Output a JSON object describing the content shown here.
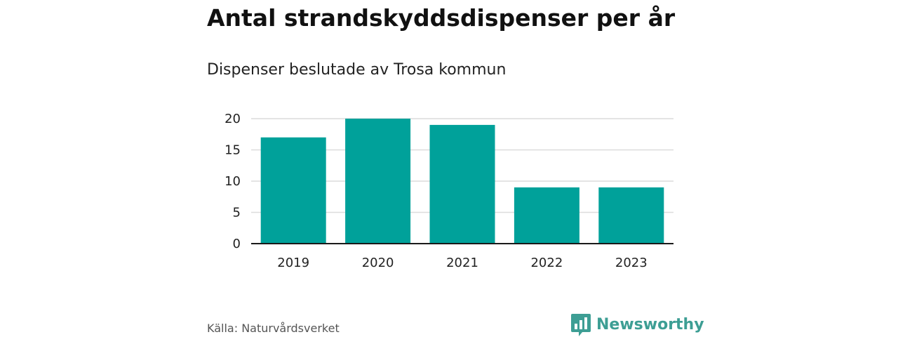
{
  "title": "Antal strandskyddsdispenser per år",
  "subtitle": "Dispenser beslutade av Trosa kommun",
  "source": "Källa: Naturvårdsverket",
  "brand": {
    "name": "Newsworthy",
    "icon": "bar-chart-speech-bubble-icon",
    "color": "#3d9e94"
  },
  "colors": {
    "bar": "#00a19a",
    "grid": "#dcdcdc",
    "axis": "#1a1a1a",
    "text": "#222222"
  },
  "chart_data": {
    "type": "bar",
    "title": "Antal strandskyddsdispenser per år",
    "subtitle": "Dispenser beslutade av Trosa kommun",
    "categories": [
      "2019",
      "2020",
      "2021",
      "2022",
      "2023"
    ],
    "values": [
      17,
      20,
      19,
      9,
      9
    ],
    "xlabel": "",
    "ylabel": "",
    "ylim": [
      0,
      20
    ],
    "yticks": [
      0,
      5,
      10,
      15,
      20
    ],
    "grid": true,
    "legend": "none"
  }
}
